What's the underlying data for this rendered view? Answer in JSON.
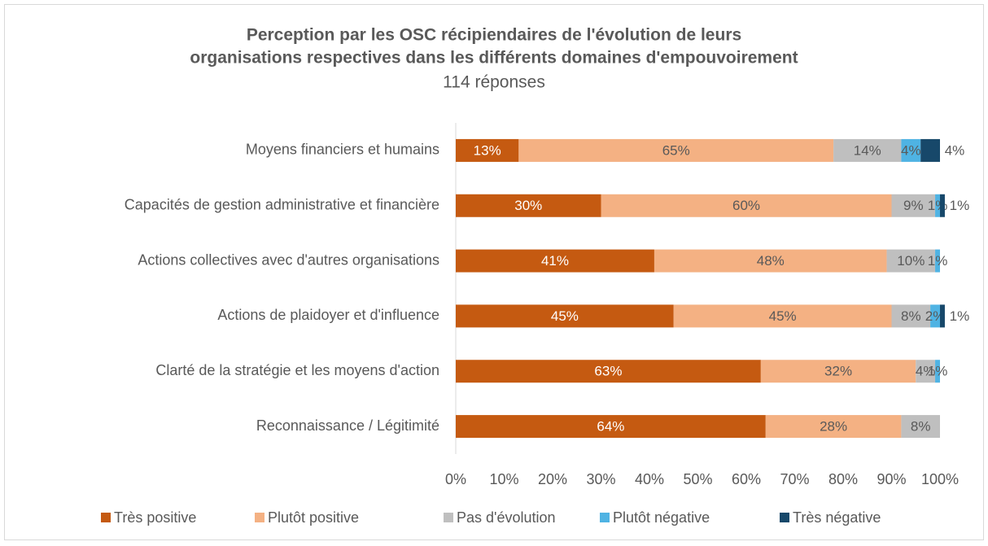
{
  "chart_data": {
    "type": "stacked_barh",
    "title": [
      "Perception par les OSC récipiendaires de l'évolution de leurs",
      "organisations respectives dans les différents domaines d'empouvoirement"
    ],
    "subtitle": "114 réponses",
    "categories": [
      "Moyens financiers et humains",
      "Capacités de gestion administrative et financière",
      "Actions collectives avec d'autres organisations",
      "Actions de plaidoyer et d'influence",
      "Clarté de la stratégie et les moyens d'action",
      "Reconnaissance / Légitimité"
    ],
    "series": [
      {
        "name": "Très positive",
        "color": "#c55a11",
        "values": [
          13,
          30,
          41,
          45,
          63,
          64
        ],
        "value_labels": [
          "13%",
          "30%",
          "41%",
          "45%",
          "63%",
          "64%"
        ]
      },
      {
        "name": "Plutôt positive",
        "color": "#f4b183",
        "values": [
          65,
          60,
          48,
          45,
          32,
          28
        ],
        "value_labels": [
          "65%",
          "60%",
          "48%",
          "45%",
          "32%",
          "28%"
        ]
      },
      {
        "name": "Pas d'évolution",
        "color": "#bfbfbf",
        "values": [
          14,
          9,
          10,
          8,
          4,
          8
        ],
        "value_labels": [
          "14%",
          "9%",
          "10%",
          "8%",
          "4%",
          "8%"
        ]
      },
      {
        "name": "Plutôt négative",
        "color": "#4fb3e3",
        "values": [
          4,
          1,
          1,
          2,
          1,
          null
        ],
        "value_labels": [
          "4%",
          "1%",
          "1%",
          "2%",
          "1%",
          null
        ]
      },
      {
        "name": "Très négative",
        "color": "#17486a",
        "values": [
          4,
          1,
          null,
          1,
          null,
          null
        ],
        "value_labels": [
          "4%",
          "1%",
          null,
          "1%",
          null,
          null
        ]
      }
    ],
    "xlim": [
      0,
      100
    ],
    "xticks": [
      {
        "value": 0,
        "label": "0%"
      },
      {
        "value": 10,
        "label": "10%"
      },
      {
        "value": 20,
        "label": "20%"
      },
      {
        "value": 30,
        "label": "30%"
      },
      {
        "value": 40,
        "label": "40%"
      },
      {
        "value": 50,
        "label": "50%"
      },
      {
        "value": 60,
        "label": "60%"
      },
      {
        "value": 70,
        "label": "70%"
      },
      {
        "value": 80,
        "label": "80%"
      },
      {
        "value": 90,
        "label": "90%"
      },
      {
        "value": 100,
        "label": "100%"
      }
    ],
    "legend": "bottom"
  }
}
